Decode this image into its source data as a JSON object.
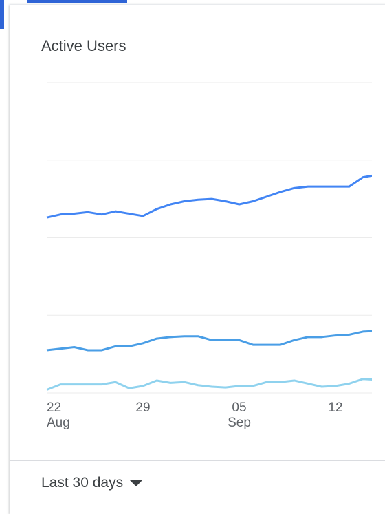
{
  "chart_data": {
    "type": "line",
    "title": "Active Users",
    "categories": [
      "22",
      null,
      null,
      null,
      null,
      null,
      null,
      "29",
      null,
      null,
      null,
      null,
      null,
      null,
      "05",
      null,
      null,
      null,
      null,
      null,
      null,
      "12",
      null,
      null,
      null
    ],
    "months": [
      "Aug",
      null,
      null,
      null,
      null,
      null,
      null,
      null,
      null,
      null,
      null,
      null,
      null,
      null,
      "Sep",
      null,
      null,
      null,
      null,
      null,
      null,
      null,
      null,
      null,
      null
    ],
    "series": [
      {
        "color": "#4285f4",
        "values": [
          2.26,
          2.3,
          2.31,
          2.33,
          2.3,
          2.34,
          2.31,
          2.28,
          2.37,
          2.43,
          2.47,
          2.49,
          2.5,
          2.47,
          2.43,
          2.47,
          2.53,
          2.59,
          2.64,
          2.66,
          2.66,
          2.66,
          2.66,
          2.78,
          2.81
        ]
      },
      {
        "color": "#4a9ee6",
        "values": [
          0.55,
          0.57,
          0.59,
          0.55,
          0.55,
          0.6,
          0.6,
          0.64,
          0.7,
          0.72,
          0.73,
          0.73,
          0.68,
          0.68,
          0.68,
          0.62,
          0.62,
          0.62,
          0.68,
          0.72,
          0.72,
          0.74,
          0.75,
          0.79,
          0.8
        ]
      },
      {
        "color": "#8fd2ee",
        "values": [
          0.04,
          0.11,
          0.11,
          0.11,
          0.11,
          0.14,
          0.06,
          0.09,
          0.16,
          0.13,
          0.14,
          0.1,
          0.08,
          0.07,
          0.09,
          0.09,
          0.14,
          0.14,
          0.16,
          0.12,
          0.08,
          0.09,
          0.12,
          0.18,
          0.17
        ]
      }
    ],
    "ylim": [
      0,
      4
    ],
    "yticks": [
      0,
      1,
      2,
      3,
      4
    ],
    "grid": true
  },
  "date_range": "Last 30 days"
}
